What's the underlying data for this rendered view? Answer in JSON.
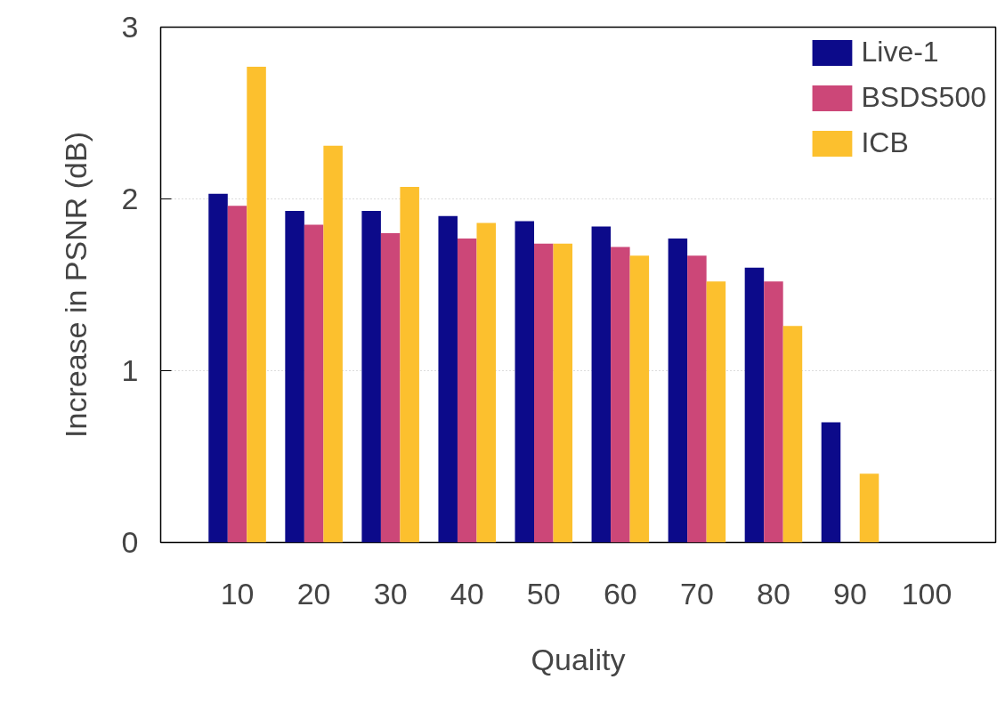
{
  "chart_data": {
    "type": "bar",
    "xlabel": "Quality",
    "ylabel": "Increase in PSNR (dB)",
    "categories": [
      "10",
      "20",
      "30",
      "40",
      "50",
      "60",
      "70",
      "80",
      "90",
      "100"
    ],
    "series": [
      {
        "name": "Live-1",
        "color": "#0c0a8a",
        "values": [
          2.03,
          1.93,
          1.93,
          1.9,
          1.87,
          1.84,
          1.77,
          1.6,
          0.7,
          null
        ]
      },
      {
        "name": "BSDS500",
        "color": "#cc4778",
        "values": [
          1.96,
          1.85,
          1.8,
          1.77,
          1.74,
          1.72,
          1.67,
          1.52,
          null,
          null
        ]
      },
      {
        "name": "ICB",
        "color": "#fcc02e",
        "values": [
          2.77,
          2.31,
          2.07,
          1.86,
          1.74,
          1.67,
          1.52,
          1.26,
          0.4,
          null
        ]
      }
    ],
    "ylim": [
      0,
      3
    ],
    "yticks": [
      0,
      1,
      2,
      3
    ],
    "grid": "y",
    "legend": "top right"
  }
}
